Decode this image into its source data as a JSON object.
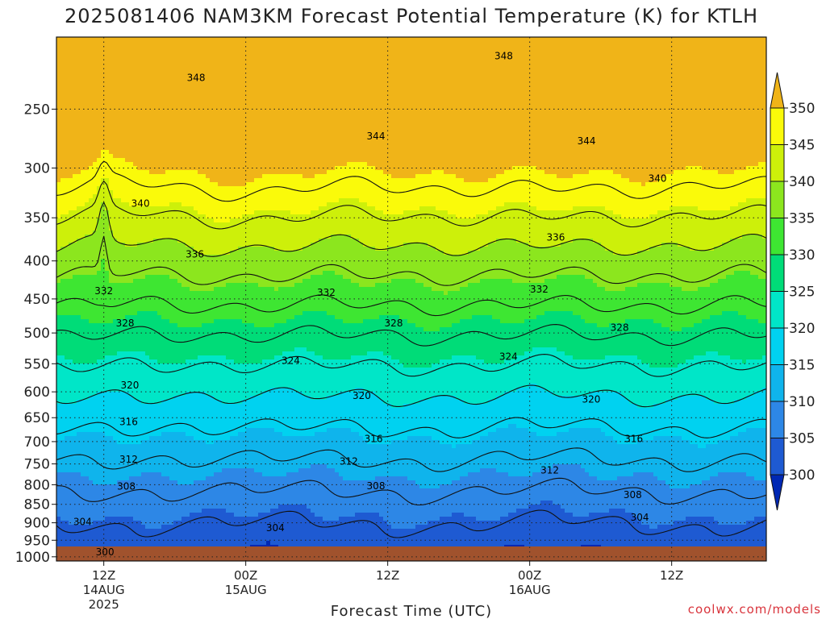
{
  "chart_data": {
    "type": "heatmap",
    "title": "2025081406 NAM3KM Forecast Potential Temperature (K) for KTLH",
    "xlabel": "Forecast Time (UTC)",
    "y_ticks": [
      250,
      300,
      350,
      400,
      450,
      500,
      550,
      600,
      650,
      700,
      750,
      800,
      850,
      900,
      950,
      1000
    ],
    "y_tick_labels": [
      "250",
      "300",
      "350",
      "400",
      "450",
      "500",
      "550",
      "600",
      "650",
      "700",
      "750",
      "800",
      "850",
      "900",
      "950",
      "1000"
    ],
    "y_range": [
      200,
      1013
    ],
    "x_range_hours": [
      8,
      68
    ],
    "x_ticks": [
      {
        "hour": 12,
        "lines": [
          "12Z",
          "14AUG",
          "2025"
        ]
      },
      {
        "hour": 24,
        "lines": [
          "00Z",
          "15AUG"
        ]
      },
      {
        "hour": 36,
        "lines": [
          "12Z"
        ]
      },
      {
        "hour": 48,
        "lines": [
          "00Z",
          "16AUG"
        ]
      },
      {
        "hour": 60,
        "lines": [
          "12Z"
        ]
      }
    ],
    "colorbar": {
      "levels": [
        300,
        305,
        310,
        315,
        320,
        325,
        330,
        335,
        340,
        345,
        350
      ],
      "labels": [
        "300",
        "305",
        "310",
        "315",
        "320",
        "325",
        "330",
        "335",
        "340",
        "345",
        "350"
      ],
      "colors": [
        "#0028b4",
        "#1e5ad2",
        "#2d87e6",
        "#0fb4ec",
        "#00d2f0",
        "#00e6c8",
        "#00dc78",
        "#3ee632",
        "#8ce61e",
        "#cdf00a",
        "#fafa0a",
        "#f0b418"
      ]
    },
    "contour_levels": [
      304,
      308,
      312,
      316,
      320,
      324,
      328,
      332,
      336,
      340,
      344,
      348
    ],
    "contour_labels": [
      {
        "text": "348",
        "hour": 19.8,
        "p": 227
      },
      {
        "text": "348",
        "hour": 45.8,
        "p": 212
      },
      {
        "text": "344",
        "hour": 35,
        "p": 272
      },
      {
        "text": "344",
        "hour": 52.8,
        "p": 276
      },
      {
        "text": "340",
        "hour": 15.1,
        "p": 335
      },
      {
        "text": "340",
        "hour": 58.8,
        "p": 310
      },
      {
        "text": "336",
        "hour": 19.7,
        "p": 392
      },
      {
        "text": "336",
        "hour": 50.2,
        "p": 372
      },
      {
        "text": "332",
        "hour": 12,
        "p": 439
      },
      {
        "text": "332",
        "hour": 30.8,
        "p": 441
      },
      {
        "text": "332",
        "hour": 48.8,
        "p": 437
      },
      {
        "text": "328",
        "hour": 13.8,
        "p": 485
      },
      {
        "text": "328",
        "hour": 36.5,
        "p": 485
      },
      {
        "text": "328",
        "hour": 55.6,
        "p": 492
      },
      {
        "text": "324",
        "hour": 27.8,
        "p": 545
      },
      {
        "text": "324",
        "hour": 46.2,
        "p": 538
      },
      {
        "text": "320",
        "hour": 14.2,
        "p": 588
      },
      {
        "text": "320",
        "hour": 33.8,
        "p": 607
      },
      {
        "text": "320",
        "hour": 53.2,
        "p": 614
      },
      {
        "text": "316",
        "hour": 14.1,
        "p": 659
      },
      {
        "text": "316",
        "hour": 34.8,
        "p": 694
      },
      {
        "text": "316",
        "hour": 56.8,
        "p": 694
      },
      {
        "text": "312",
        "hour": 14.1,
        "p": 740
      },
      {
        "text": "312",
        "hour": 32.7,
        "p": 744
      },
      {
        "text": "312",
        "hour": 49.7,
        "p": 765
      },
      {
        "text": "308",
        "hour": 13.9,
        "p": 804
      },
      {
        "text": "308",
        "hour": 35,
        "p": 803
      },
      {
        "text": "308",
        "hour": 56.7,
        "p": 826
      },
      {
        "text": "304",
        "hour": 10.2,
        "p": 897
      },
      {
        "text": "304",
        "hour": 26.5,
        "p": 915
      },
      {
        "text": "304",
        "hour": 57.3,
        "p": 885
      },
      {
        "text": "300",
        "hour": 12.1,
        "p": 986
      }
    ],
    "credit": "coolwx.com/models"
  }
}
